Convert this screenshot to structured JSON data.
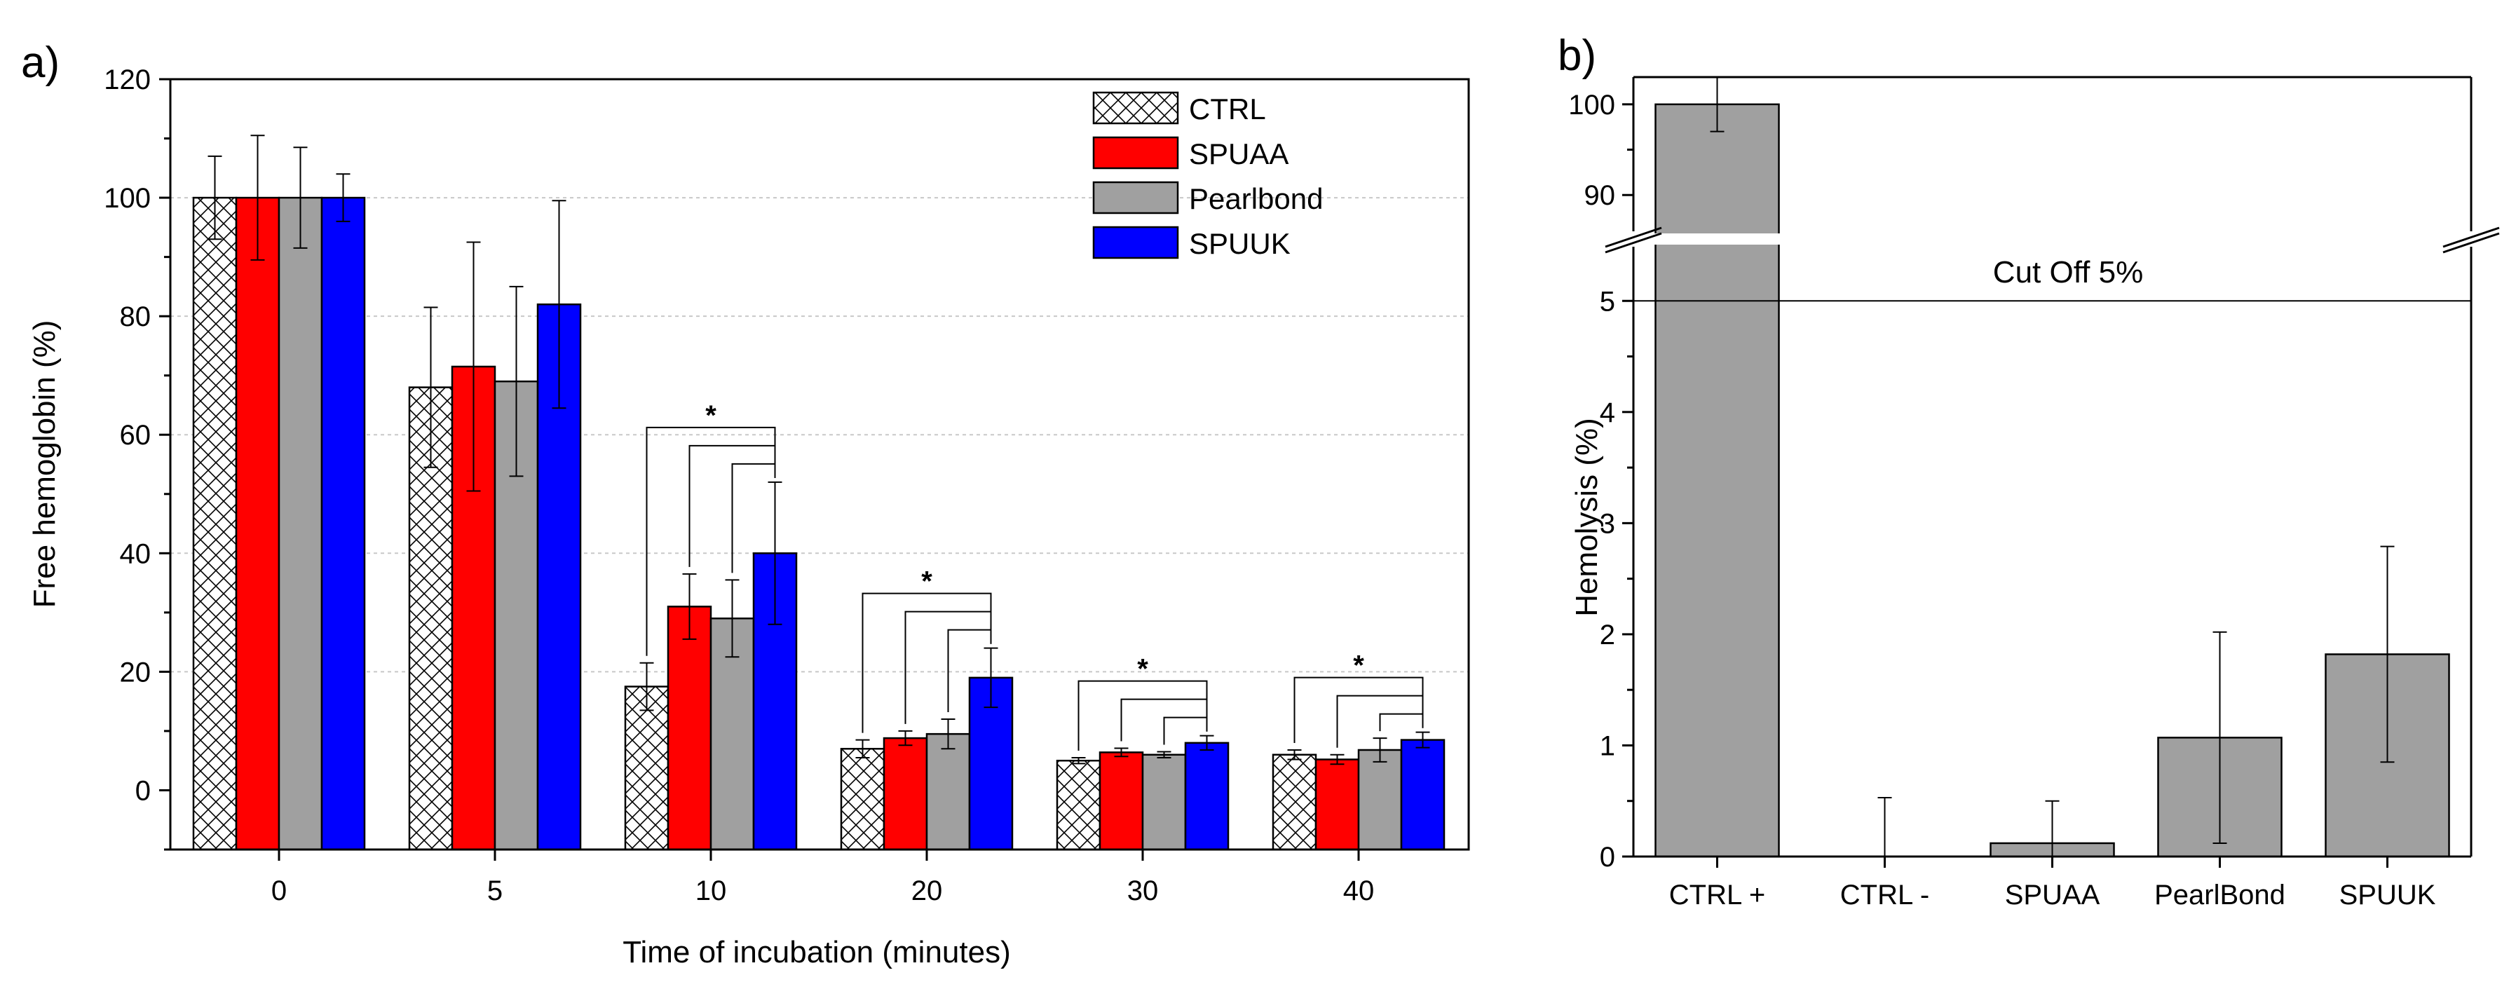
{
  "colors": {
    "CTRL": "#ffffff",
    "SPUAA": "#ff0000",
    "Pearlbond": "#a0a0a0",
    "SPUUK": "#0000ff",
    "panel_b_bar": "#a0a0a0"
  },
  "chart_data": [
    {
      "panel": "a)",
      "type": "bar",
      "xlabel": "Time of incubation (minutes)",
      "ylabel": "Free hemoglobin (%)",
      "ylim": [
        -10,
        120
      ],
      "yticks": [
        "0",
        "20",
        "40",
        "60",
        "80",
        "100",
        "120"
      ],
      "categories": [
        "0",
        "5",
        "10",
        "20",
        "30",
        "40"
      ],
      "legend_position": "top-right",
      "series": [
        {
          "name": "CTRL",
          "values": [
            100,
            68,
            17.5,
            7,
            5,
            6
          ],
          "errors": [
            7,
            13.5,
            4,
            1.5,
            0.5,
            0.8
          ]
        },
        {
          "name": "SPUAA",
          "values": [
            100,
            71.5,
            31,
            8.8,
            6.4,
            5.2
          ],
          "errors": [
            10.5,
            21,
            5.5,
            1.2,
            0.7,
            0.8
          ]
        },
        {
          "name": "Pearlbond",
          "values": [
            100,
            69,
            29,
            9.5,
            6,
            6.8
          ],
          "errors": [
            8.5,
            16,
            6.5,
            2.5,
            0.5,
            2
          ]
        },
        {
          "name": "SPUUK",
          "values": [
            100,
            82,
            40,
            19,
            8,
            8.5
          ],
          "errors": [
            4,
            17.5,
            12,
            5,
            1.2,
            1.3
          ]
        }
      ],
      "significance": [
        {
          "category": "10",
          "label": "*"
        },
        {
          "category": "20",
          "label": "*"
        },
        {
          "category": "30",
          "label": "*"
        },
        {
          "category": "40",
          "label": "*"
        }
      ]
    },
    {
      "panel": "b)",
      "type": "bar",
      "xlabel": "",
      "ylabel": "Hemolysis (%)",
      "categories": [
        "CTRL +",
        "CTRL -",
        "SPUAA",
        "PearlBond",
        "SPUUK"
      ],
      "values": [
        100,
        0,
        0.12,
        1.07,
        1.82
      ],
      "errors": [
        3,
        0.53,
        0.38,
        0.95,
        0.97
      ],
      "ylim_lower": [
        0,
        5.5
      ],
      "ylim_upper": [
        86,
        103
      ],
      "yticks_lower": [
        "0",
        "1",
        "2",
        "3",
        "4",
        "5"
      ],
      "yticks_upper": [
        "90",
        "100"
      ],
      "axis_break": true,
      "reference_line": {
        "value": 5,
        "label": "Cut Off 5%"
      }
    }
  ]
}
